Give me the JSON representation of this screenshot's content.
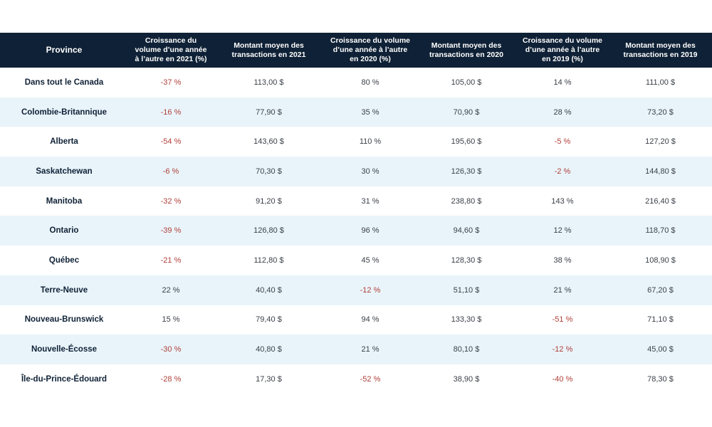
{
  "headers": [
    "Province",
    "Croissance du volume d’une année à l’autre en 2021 (%)",
    "Montant moyen des transactions en 2021",
    "Croissance du volume d’une année à l’autre en 2020 (%)",
    "Montant moyen des transactions en 2020",
    "Croissance du volume d’une année à l’autre en 2019 (%)",
    "Montant moyen des transactions en 2019"
  ],
  "rows": [
    [
      "Dans tout le Canada",
      "-37 %",
      "113,00 $",
      "80 %",
      "105,00 $",
      "14 %",
      "111,00 $"
    ],
    [
      "Colombie-Britannique",
      "-16 %",
      "77,90 $",
      "35 %",
      "70,90 $",
      "28 %",
      "73,20 $"
    ],
    [
      "Alberta",
      "-54 %",
      "143,60 $",
      "110 %",
      "195,60 $",
      "-5 %",
      "127,20 $"
    ],
    [
      "Saskatchewan",
      "-6 %",
      "70,30 $",
      "30 %",
      "126,30 $",
      "-2 %",
      "144,80 $"
    ],
    [
      "Manitoba",
      "-32 %",
      "91,20 $",
      "31 %",
      "238,80 $",
      "143 %",
      "216,40 $"
    ],
    [
      "Ontario",
      "-39 %",
      "126,80 $",
      "96 %",
      "94,60 $",
      "12 %",
      "118,70 $"
    ],
    [
      "Québec",
      "-21 %",
      "112,80 $",
      "45 %",
      "128,30 $",
      "38 %",
      "108,90 $"
    ],
    [
      "Terre-Neuve",
      "22 %",
      "40,40 $",
      "-12 %",
      "51,10 $",
      "21 %",
      "67,20 $"
    ],
    [
      "Nouveau-Brunswick",
      "15 %",
      "79,40 $",
      "94 %",
      "133,30 $",
      "-51 %",
      "71,10 $"
    ],
    [
      "Nouvelle-Écosse",
      "-30 %",
      "40,80 $",
      "21 %",
      "80,10 $",
      "-12 %",
      "45,00 $"
    ],
    [
      "Île-du-Prince-Édouard",
      "-28 %",
      "17,30 $",
      "-52 %",
      "38,90 $",
      "-40 %",
      "78,30 $"
    ]
  ],
  "colors": {
    "header_bg": "#0f2136",
    "stripe_bg": "#e9f4fa",
    "negative_text": "#b0403a"
  }
}
